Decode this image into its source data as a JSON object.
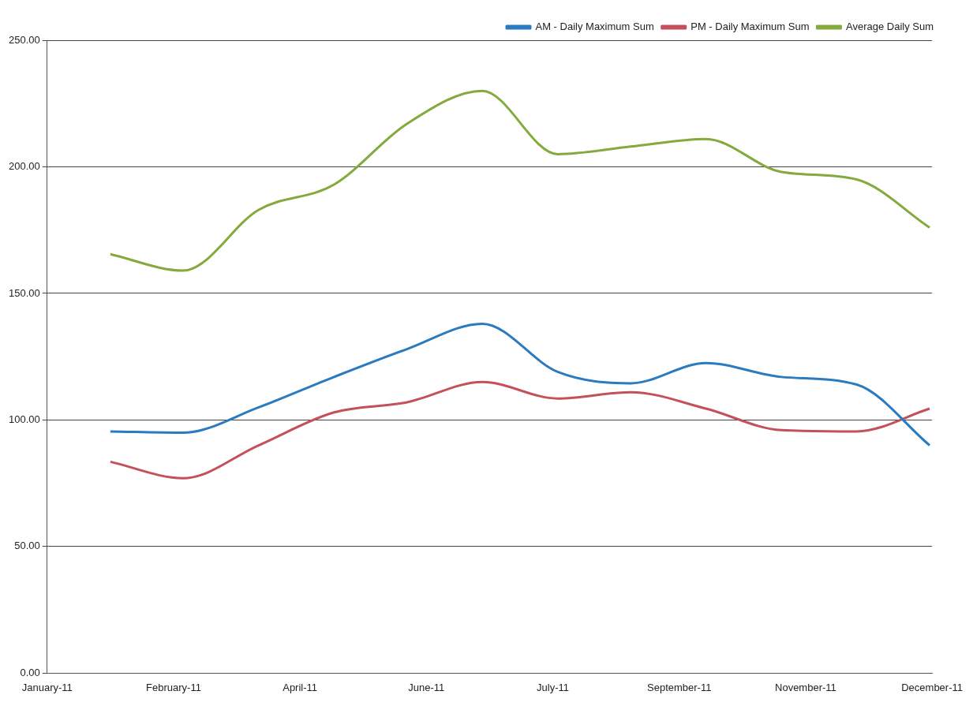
{
  "chart_data": {
    "type": "line",
    "x": [
      "2011-01-27",
      "2011-02-26",
      "2011-03-29",
      "2011-04-29",
      "2011-05-29",
      "2011-06-29",
      "2011-07-30",
      "2011-08-29",
      "2011-09-29",
      "2011-10-30",
      "2011-11-30",
      "2011-12-30"
    ],
    "series": [
      {
        "name": "AM - Daily Maximum Sum",
        "color": "#2a7bbf",
        "values": [
          95.5,
          95,
          105,
          117,
          128,
          138,
          119,
          114.5,
          122.5,
          117,
          114,
          90
        ]
      },
      {
        "name": "PM - Daily Maximum Sum",
        "color": "#c4505a",
        "values": [
          83.5,
          77,
          90,
          103,
          107,
          115,
          108.5,
          111,
          104.5,
          96,
          95.5,
          104.5
        ]
      },
      {
        "name": "Average Daily Sum",
        "color": "#84a93c",
        "values": [
          165.5,
          159,
          183,
          193,
          217,
          230,
          205,
          208,
          211,
          198,
          195,
          176
        ]
      }
    ],
    "ylim": [
      0,
      250
    ],
    "yticks": [
      {
        "value": 0,
        "label": "0.00"
      },
      {
        "value": 50,
        "label": "50.00"
      },
      {
        "value": 100,
        "label": "100.00"
      },
      {
        "value": 150,
        "label": "150.00"
      },
      {
        "value": 200,
        "label": "200.00"
      },
      {
        "value": 250,
        "label": "250.00"
      }
    ],
    "xlim": [
      "2011-01-01",
      "2011-12-31"
    ],
    "xticks": [
      {
        "value": "2011-01-01",
        "label": "January-11"
      },
      {
        "value": "2011-02-22",
        "label": "February-11"
      },
      {
        "value": "2011-04-15",
        "label": "April-11"
      },
      {
        "value": "2011-06-06",
        "label": "June-11"
      },
      {
        "value": "2011-07-28",
        "label": "July-11"
      },
      {
        "value": "2011-09-18",
        "label": "September-11"
      },
      {
        "value": "2011-11-09",
        "label": "November-11"
      },
      {
        "value": "2011-12-31",
        "label": "December-11"
      }
    ],
    "grid": "y",
    "legend": "top right",
    "marker": "none",
    "line_style": "solid"
  }
}
